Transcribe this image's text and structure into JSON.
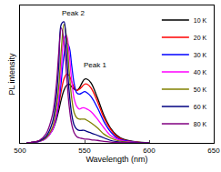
{
  "chart_data": {
    "type": "line",
    "x_label": "Wavelength (nm)",
    "y_label": "PL intensity",
    "x": [
      505,
      510,
      515,
      520,
      525,
      528,
      530,
      532,
      534,
      536,
      538,
      540,
      542,
      544,
      546,
      548,
      550,
      552,
      555,
      560,
      565,
      570,
      575,
      580,
      590,
      600
    ],
    "series": [
      {
        "name": "10 K",
        "color": "#000000",
        "values": [
          0,
          0.005,
          0.015,
          0.04,
          0.1,
          0.18,
          0.26,
          0.35,
          0.42,
          0.46,
          0.47,
          0.45,
          0.43,
          0.42,
          0.44,
          0.48,
          0.51,
          0.51,
          0.48,
          0.36,
          0.22,
          0.12,
          0.06,
          0.03,
          0.008,
          0
        ]
      },
      {
        "name": "20 K",
        "color": "#ff0000",
        "values": [
          0,
          0.005,
          0.015,
          0.04,
          0.11,
          0.2,
          0.3,
          0.42,
          0.51,
          0.55,
          0.54,
          0.49,
          0.44,
          0.42,
          0.43,
          0.45,
          0.47,
          0.47,
          0.44,
          0.33,
          0.2,
          0.11,
          0.05,
          0.025,
          0.006,
          0
        ]
      },
      {
        "name": "30 K",
        "color": "#0000ff",
        "values": [
          0,
          0.004,
          0.012,
          0.035,
          0.1,
          0.2,
          0.32,
          0.5,
          0.7,
          0.8,
          0.77,
          0.62,
          0.47,
          0.4,
          0.39,
          0.4,
          0.41,
          0.4,
          0.37,
          0.28,
          0.17,
          0.09,
          0.04,
          0.02,
          0.005,
          0
        ]
      },
      {
        "name": "40 K",
        "color": "#ff00ff",
        "values": [
          0,
          0.004,
          0.012,
          0.035,
          0.1,
          0.22,
          0.36,
          0.6,
          0.83,
          0.86,
          0.72,
          0.5,
          0.35,
          0.29,
          0.27,
          0.28,
          0.28,
          0.27,
          0.25,
          0.19,
          0.12,
          0.06,
          0.03,
          0.015,
          0.004,
          0
        ]
      },
      {
        "name": "50 K",
        "color": "#808000",
        "values": [
          0,
          0.004,
          0.013,
          0.04,
          0.12,
          0.27,
          0.45,
          0.75,
          0.95,
          0.85,
          0.58,
          0.36,
          0.24,
          0.2,
          0.19,
          0.19,
          0.19,
          0.18,
          0.16,
          0.12,
          0.07,
          0.04,
          0.02,
          0.01,
          0.003,
          0
        ]
      },
      {
        "name": "60 K",
        "color": "#000080",
        "values": [
          0,
          0.005,
          0.015,
          0.05,
          0.16,
          0.36,
          0.62,
          0.95,
          0.97,
          0.72,
          0.42,
          0.23,
          0.14,
          0.11,
          0.1,
          0.1,
          0.1,
          0.09,
          0.08,
          0.06,
          0.04,
          0.02,
          0.01,
          0.005,
          0.002,
          0
        ]
      },
      {
        "name": "80 K",
        "color": "#800080",
        "values": [
          0,
          0.006,
          0.02,
          0.07,
          0.22,
          0.45,
          0.72,
          0.92,
          0.82,
          0.55,
          0.3,
          0.15,
          0.08,
          0.05,
          0.04,
          0.035,
          0.03,
          0.03,
          0.025,
          0.02,
          0.012,
          0.007,
          0.004,
          0.002,
          0.001,
          0
        ]
      }
    ],
    "annotations": [
      {
        "text": "Peak 1",
        "x": 558,
        "y": 0.62
      },
      {
        "text": "Peak 2",
        "x": 541,
        "y": 1.04
      }
    ],
    "xlim": [
      500,
      650
    ],
    "xticks": [
      500,
      550,
      600,
      650
    ],
    "ylim": [
      0,
      1.1
    ],
    "tick_labels": "x",
    "legend": "upper right",
    "grid": false
  }
}
